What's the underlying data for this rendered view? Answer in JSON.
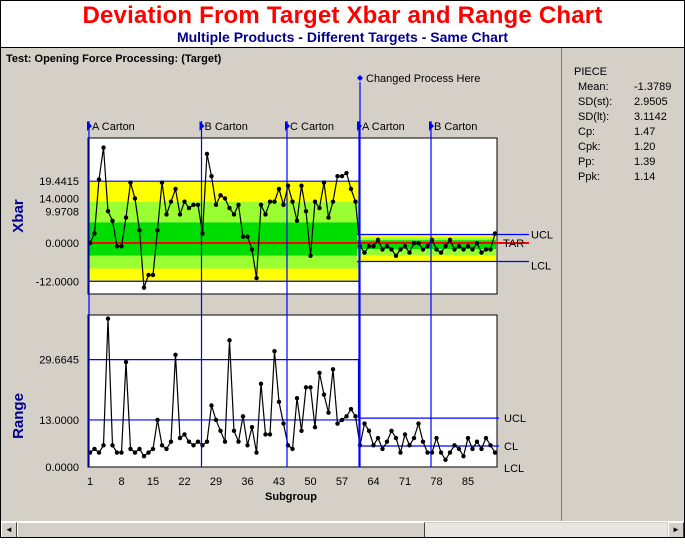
{
  "window": {
    "title": "Deviation From Target Xbar and Range Chart",
    "subtitle": "Multiple Products - Different Targets - Same Chart",
    "test_label": "Test: Opening Force Processing:  (Target)"
  },
  "annotation": {
    "changed_process": "Changed Process Here"
  },
  "stats": {
    "title": "PIECE",
    "rows": [
      {
        "label": "Mean:",
        "value": "-1.3789"
      },
      {
        "label": "SD(st):",
        "value": "2.9505"
      },
      {
        "label": "SD(lt):",
        "value": "3.1142"
      },
      {
        "label": "Cp:",
        "value": "1.47"
      },
      {
        "label": "Cpk:",
        "value": "1.20"
      },
      {
        "label": "Pp:",
        "value": "1.39"
      },
      {
        "label": "Ppk:",
        "value": "1.14"
      }
    ]
  },
  "scrollbar": {
    "left_arrow": "◄",
    "right_arrow": "►"
  },
  "colors": {
    "title": "#ff0000",
    "subtitle": "#00008b",
    "axis_label": "#00008b",
    "marker_line": "#0000ff",
    "data": "#000000",
    "target": "#ff0000",
    "zone_yellow": "#ffff00",
    "zone_lime": "#99ff33",
    "zone_green": "#00dd00"
  },
  "chart_data": [
    {
      "type": "line",
      "title": "Xbar",
      "ylabel": "Xbar",
      "ytick_labels": [
        "19.4415",
        "14.0000",
        "9.9708",
        "0.0000",
        "-12.0000"
      ],
      "ytick_values": [
        19.4415,
        14.0,
        9.9708,
        0.0,
        -12.0
      ],
      "ylim": [
        -16,
        33
      ],
      "x_start": 1,
      "limit_labels": [
        "UCL",
        "TAR",
        "LCL"
      ],
      "segments": [
        {
          "name": "A Carton",
          "start": 1
        },
        {
          "name": "B Carton",
          "start": 26
        },
        {
          "name": "C Carton",
          "start": 45
        },
        {
          "name": "A Carton",
          "start": 61
        },
        {
          "name": "B Carton",
          "start": 77
        }
      ],
      "phase1": {
        "end": 60,
        "ucl": 19.4415,
        "target": 0.0,
        "lcl": -12.0
      },
      "phase2": {
        "start": 61,
        "end": 91,
        "ucl": 2.7,
        "target": 0.0,
        "lcl": -5.8
      },
      "values": [
        0,
        3,
        20,
        30,
        10,
        7,
        -1,
        -1,
        8,
        19,
        14,
        4,
        -14,
        -10,
        -10,
        4,
        19,
        9,
        13,
        17,
        9,
        13,
        11,
        12,
        12,
        3,
        28,
        21,
        12,
        15,
        14,
        11,
        9,
        12,
        2,
        2,
        -2,
        -11,
        12,
        9,
        13,
        13,
        17,
        12,
        18,
        13,
        7,
        18,
        10,
        -4,
        13,
        11,
        19,
        8,
        13,
        21,
        21,
        22,
        17,
        13,
        -1,
        -3,
        -1,
        -1,
        1,
        -2,
        -1,
        -2,
        -4,
        -2,
        -1,
        -3,
        0,
        0,
        -2,
        -1,
        1,
        -2,
        -3,
        -1,
        1,
        -2,
        -1,
        -2,
        -1,
        -2,
        0,
        -3,
        -2,
        -2,
        3
      ]
    },
    {
      "type": "line",
      "title": "Range",
      "ylabel": "Range",
      "xlabel": "Subgroup",
      "ytick_labels": [
        "29.6645",
        "13.0000",
        "0.0000"
      ],
      "ytick_values": [
        29.6645,
        13.0,
        0.0
      ],
      "ylim": [
        0,
        42
      ],
      "x_start": 1,
      "xtick_labels": [
        "1",
        "8",
        "15",
        "22",
        "29",
        "36",
        "43",
        "50",
        "57",
        "64",
        "71",
        "78",
        "85"
      ],
      "limit_labels": [
        "UCL",
        "CL",
        "LCL"
      ],
      "phase1": {
        "end": 60,
        "ucl": 29.6645,
        "cl": 13.0,
        "lcl": 0.0
      },
      "phase2": {
        "start": 61,
        "end": 91,
        "ucl": 13.5,
        "cl": 5.8,
        "lcl": 0.0
      },
      "values": [
        4,
        5,
        4,
        6,
        41,
        6,
        4,
        4,
        29,
        5,
        4,
        5,
        3,
        4,
        5,
        13,
        6,
        5,
        7,
        31,
        8,
        9,
        7,
        6,
        7,
        6,
        7,
        17,
        13,
        10,
        7,
        35,
        10,
        7,
        14,
        6,
        11,
        4,
        23,
        9,
        9,
        32,
        18,
        12,
        6,
        5,
        19,
        10,
        22,
        22,
        11,
        26,
        20,
        15,
        27,
        12,
        13,
        14,
        16,
        14,
        6,
        12,
        10,
        6,
        8,
        5,
        7,
        10,
        8,
        4,
        9,
        6,
        8,
        12,
        7,
        4,
        4,
        8,
        4,
        2,
        4,
        6,
        5,
        3,
        8,
        5,
        7,
        5,
        8,
        6,
        4
      ]
    }
  ]
}
